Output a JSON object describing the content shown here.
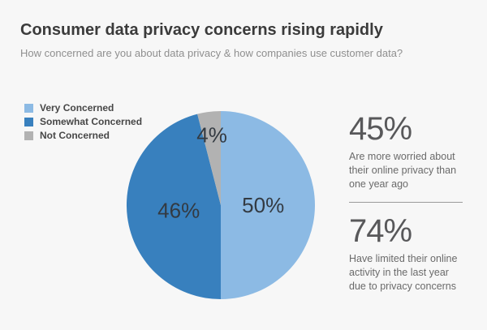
{
  "page": {
    "background_color": "#f7f7f7"
  },
  "header": {
    "title": "Consumer data privacy concerns rising rapidly",
    "subtitle": "How concerned are you about data privacy & how companies use customer data?"
  },
  "chart_data": {
    "type": "pie",
    "title": "Consumer data privacy concerns rising rapidly",
    "subtitle": "How concerned are you about data privacy & how companies use customer data?",
    "start_angle_deg": 0,
    "direction": "clockwise",
    "legend_position": "top-left",
    "label_color": "#333a42",
    "segments": [
      {
        "label": "Very Concerned",
        "value": 50,
        "data_label": "50%",
        "color": "#8cbae4"
      },
      {
        "label": "Somewhat Concerned",
        "value": 46,
        "data_label": "46%",
        "color": "#3880be"
      },
      {
        "label": "Not Concerned",
        "value": 4,
        "data_label": "4%",
        "color": "#b2b2b2"
      }
    ]
  },
  "stats": [
    {
      "value": "45%",
      "description": "Are more worried about their online privacy than one year ago"
    },
    {
      "value": "74%",
      "description": "Have limited their online activity in the last year due to privacy concerns"
    }
  ]
}
